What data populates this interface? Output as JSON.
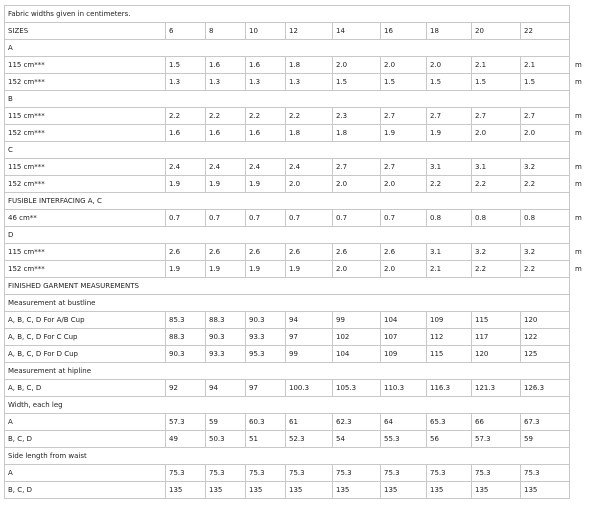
{
  "note": "Fabric widths given in centimeters.",
  "sizes_label": "SIZES",
  "sizes": [
    "6",
    "8",
    "10",
    "12",
    "14",
    "16",
    "18",
    "20",
    "22"
  ],
  "sections": [
    {
      "title": "A",
      "rows": [
        {
          "label": "115 cm***",
          "values": [
            "1.5",
            "1.6",
            "1.6",
            "1.8",
            "2.0",
            "2.0",
            "2.0",
            "2.1",
            "2.1"
          ],
          "unit": "m"
        },
        {
          "label": "152 cm***",
          "values": [
            "1.3",
            "1.3",
            "1.3",
            "1.3",
            "1.5",
            "1.5",
            "1.5",
            "1.5",
            "1.5"
          ],
          "unit": "m"
        }
      ]
    },
    {
      "title": "B",
      "rows": [
        {
          "label": "115 cm***",
          "values": [
            "2.2",
            "2.2",
            "2.2",
            "2.2",
            "2.3",
            "2.7",
            "2.7",
            "2.7",
            "2.7"
          ],
          "unit": "m"
        },
        {
          "label": "152 cm***",
          "values": [
            "1.6",
            "1.6",
            "1.6",
            "1.8",
            "1.8",
            "1.9",
            "1.9",
            "2.0",
            "2.0"
          ],
          "unit": "m"
        }
      ]
    },
    {
      "title": "C",
      "rows": [
        {
          "label": "115 cm***",
          "values": [
            "2.4",
            "2.4",
            "2.4",
            "2.4",
            "2.7",
            "2.7",
            "3.1",
            "3.1",
            "3.2"
          ],
          "unit": "m"
        },
        {
          "label": "152 cm***",
          "values": [
            "1.9",
            "1.9",
            "1.9",
            "2.0",
            "2.0",
            "2.0",
            "2.2",
            "2.2",
            "2.2"
          ],
          "unit": "m"
        }
      ]
    },
    {
      "title": "FUSIBLE INTERFACING A, C",
      "rows": [
        {
          "label": "46 cm**",
          "values": [
            "0.7",
            "0.7",
            "0.7",
            "0.7",
            "0.7",
            "0.7",
            "0.8",
            "0.8",
            "0.8"
          ],
          "unit": "m"
        }
      ]
    },
    {
      "title": "D",
      "rows": [
        {
          "label": "115 cm***",
          "values": [
            "2.6",
            "2.6",
            "2.6",
            "2.6",
            "2.6",
            "2.6",
            "3.1",
            "3.2",
            "3.2"
          ],
          "unit": "m"
        },
        {
          "label": "152 cm***",
          "values": [
            "1.9",
            "1.9",
            "1.9",
            "1.9",
            "2.0",
            "2.0",
            "2.1",
            "2.2",
            "2.2"
          ],
          "unit": "m"
        }
      ]
    },
    {
      "title": "FINISHED GARMENT MEASUREMENTS",
      "rows": []
    },
    {
      "title": "Measurement at bustline",
      "rows": [
        {
          "label": "A, B, C, D For A/B Cup",
          "values": [
            "85.3",
            "88.3",
            "90.3",
            "94",
            "99",
            "104",
            "109",
            "115",
            "120"
          ],
          "unit": ""
        },
        {
          "label": "A, B, C, D For C Cup",
          "values": [
            "88.3",
            "90.3",
            "93.3",
            "97",
            "102",
            "107",
            "112",
            "117",
            "122"
          ],
          "unit": ""
        },
        {
          "label": "A, B, C, D For D Cup",
          "values": [
            "90.3",
            "93.3",
            "95.3",
            "99",
            "104",
            "109",
            "115",
            "120",
            "125"
          ],
          "unit": ""
        }
      ]
    },
    {
      "title": "Measurement at hipline",
      "rows": [
        {
          "label": "A, B, C, D",
          "values": [
            "92",
            "94",
            "97",
            "100.3",
            "105.3",
            "110.3",
            "116.3",
            "121.3",
            "126.3"
          ],
          "unit": ""
        }
      ]
    },
    {
      "title": "Width, each leg",
      "rows": [
        {
          "label": "A",
          "values": [
            "57.3",
            "59",
            "60.3",
            "61",
            "62.3",
            "64",
            "65.3",
            "66",
            "67.3"
          ],
          "unit": ""
        },
        {
          "label": "B, C, D",
          "values": [
            "49",
            "50.3",
            "51",
            "52.3",
            "54",
            "55.3",
            "56",
            "57.3",
            "59"
          ],
          "unit": ""
        }
      ]
    },
    {
      "title": "Side length from waist",
      "rows": [
        {
          "label": "A",
          "values": [
            "75.3",
            "75.3",
            "75.3",
            "75.3",
            "75.3",
            "75.3",
            "75.3",
            "75.3",
            "75.3"
          ],
          "unit": ""
        },
        {
          "label": "B, C, D",
          "values": [
            "135",
            "135",
            "135",
            "135",
            "135",
            "135",
            "135",
            "135",
            "135"
          ],
          "unit": ""
        }
      ]
    }
  ]
}
